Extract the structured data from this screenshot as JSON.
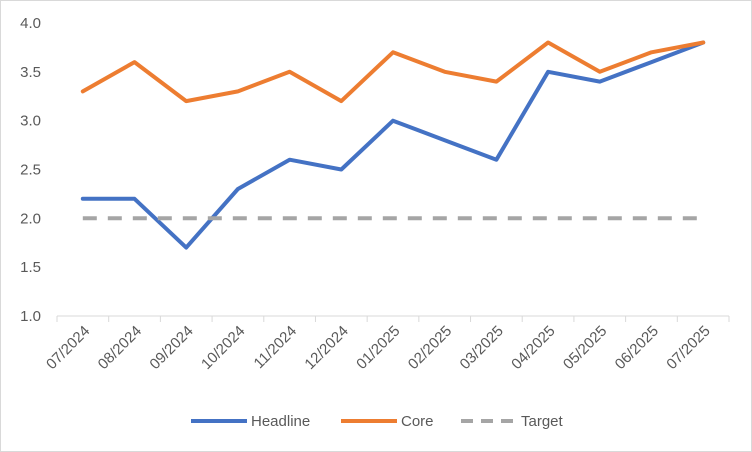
{
  "chart_data": {
    "type": "line",
    "title": "",
    "xlabel": "",
    "ylabel": "",
    "categories": [
      "07/2024",
      "08/2024",
      "09/2024",
      "10/2024",
      "11/2024",
      "12/2024",
      "01/2025",
      "02/2025",
      "03/2025",
      "04/2025",
      "05/2025",
      "06/2025",
      "07/2025"
    ],
    "ylim": [
      1.0,
      4.0
    ],
    "yticks": [
      "1.0",
      "1.5",
      "2.0",
      "2.5",
      "3.0",
      "3.5",
      "4.0"
    ],
    "grid": false,
    "legend_position": "bottom",
    "series": [
      {
        "name": "Headline",
        "color": "#4472C4",
        "dash": "solid",
        "values": [
          2.2,
          2.2,
          1.7,
          2.3,
          2.6,
          2.5,
          3.0,
          2.8,
          2.6,
          3.5,
          3.4,
          3.6,
          3.8
        ]
      },
      {
        "name": "Core",
        "color": "#ED7D31",
        "dash": "solid",
        "values": [
          3.3,
          3.6,
          3.2,
          3.3,
          3.5,
          3.2,
          3.7,
          3.5,
          3.4,
          3.8,
          3.5,
          3.7,
          3.8
        ]
      },
      {
        "name": "Target",
        "color": "#A5A5A5",
        "dash": "dashed",
        "values": [
          2.0,
          2.0,
          2.0,
          2.0,
          2.0,
          2.0,
          2.0,
          2.0,
          2.0,
          2.0,
          2.0,
          2.0,
          2.0
        ]
      }
    ]
  }
}
